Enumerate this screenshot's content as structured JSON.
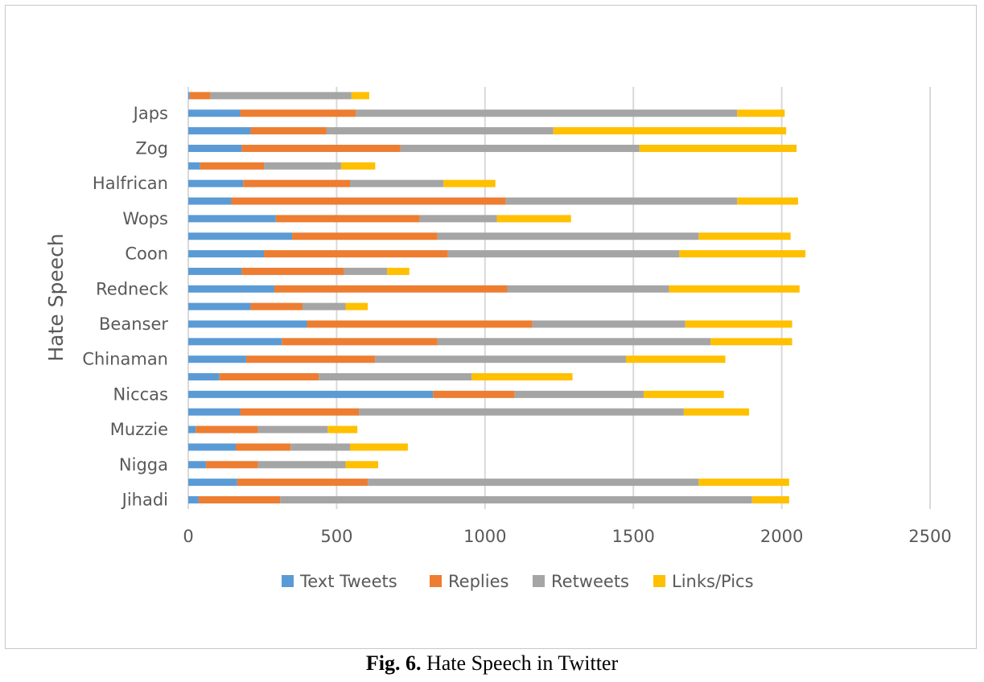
{
  "chart_data": {
    "type": "bar",
    "orientation": "horizontal",
    "stacked": true,
    "ylabel": "Hate Speech",
    "xlim": [
      0,
      2500
    ],
    "x_ticks": [
      0,
      500,
      1000,
      1500,
      2000,
      2500
    ],
    "grid": "vertical",
    "legend_position": "bottom",
    "category_labels": [
      "Japs",
      "Zog",
      "Halfrican",
      "Wops",
      "Coon",
      "Redneck",
      "Beanser",
      "Chinaman",
      "Niccas",
      "Muzzie",
      "Nigga",
      "Jihadi"
    ],
    "rows": [
      {
        "label": "",
        "values": [
          5,
          70,
          475,
          60
        ]
      },
      {
        "label": "Japs",
        "values": [
          175,
          390,
          1285,
          160
        ]
      },
      {
        "label": "",
        "values": [
          210,
          255,
          765,
          785
        ]
      },
      {
        "label": "Zog",
        "values": [
          180,
          535,
          805,
          530
        ]
      },
      {
        "label": "",
        "values": [
          40,
          215,
          260,
          115
        ]
      },
      {
        "label": "Halfrican",
        "values": [
          185,
          360,
          315,
          175
        ]
      },
      {
        "label": "",
        "values": [
          145,
          925,
          780,
          205
        ]
      },
      {
        "label": "Wops",
        "values": [
          295,
          485,
          260,
          250
        ]
      },
      {
        "label": "",
        "values": [
          350,
          490,
          880,
          310
        ]
      },
      {
        "label": "Coon",
        "values": [
          255,
          620,
          780,
          425
        ]
      },
      {
        "label": "",
        "values": [
          180,
          345,
          145,
          75
        ]
      },
      {
        "label": "Redneck",
        "values": [
          290,
          785,
          545,
          440
        ]
      },
      {
        "label": "",
        "values": [
          210,
          175,
          145,
          75
        ]
      },
      {
        "label": "Beanser",
        "values": [
          400,
          760,
          515,
          360
        ]
      },
      {
        "label": "",
        "values": [
          315,
          525,
          920,
          275
        ]
      },
      {
        "label": "Chinaman",
        "values": [
          195,
          435,
          845,
          335
        ]
      },
      {
        "label": "",
        "values": [
          105,
          335,
          515,
          340
        ]
      },
      {
        "label": "Niccas",
        "values": [
          825,
          275,
          435,
          270
        ]
      },
      {
        "label": "",
        "values": [
          175,
          400,
          1095,
          220
        ]
      },
      {
        "label": "Muzzie",
        "values": [
          25,
          210,
          235,
          100
        ]
      },
      {
        "label": "",
        "values": [
          160,
          185,
          200,
          195
        ]
      },
      {
        "label": "Nigga",
        "values": [
          60,
          175,
          295,
          110
        ]
      },
      {
        "label": "",
        "values": [
          165,
          440,
          1115,
          305
        ]
      },
      {
        "label": "Jihadi",
        "values": [
          35,
          275,
          1590,
          125
        ]
      }
    ],
    "series": [
      {
        "name": "Text Tweets",
        "color": "#5b9bd5"
      },
      {
        "name": "Replies",
        "color": "#ed7d31"
      },
      {
        "name": "Retweets",
        "color": "#a5a5a5"
      },
      {
        "name": "Links/Pics",
        "color": "#ffc000"
      }
    ]
  },
  "caption": {
    "prefix": "Fig. 6.",
    "text": " Hate Speech in Twitter"
  }
}
